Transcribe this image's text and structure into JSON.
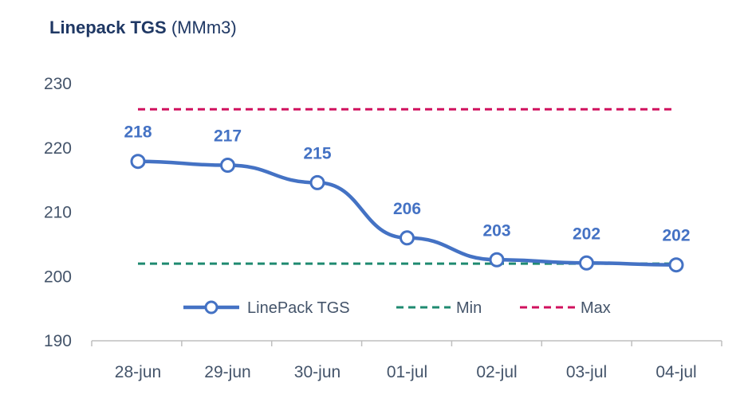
{
  "title": {
    "main": "Linepack TGS",
    "unit": "(MMm3)"
  },
  "colors": {
    "series": "#4472c4",
    "min": "#1f8a70",
    "max": "#d0115e",
    "axis_text": "#44546a",
    "title": "#1f3864"
  },
  "chart_data": {
    "type": "line",
    "title": "Linepack TGS (MMm3)",
    "xlabel": "",
    "ylabel": "",
    "categories": [
      "28-jun",
      "29-jun",
      "30-jun",
      "01-jul",
      "02-jul",
      "03-jul",
      "04-jul"
    ],
    "ylim": [
      190,
      230
    ],
    "yticks": [
      190,
      200,
      210,
      220,
      230
    ],
    "grid": false,
    "legend_position": "bottom-center",
    "series": [
      {
        "name": "LinePack TGS",
        "style": "solid-with-circle-markers",
        "values": [
          217.9,
          217.3,
          214.6,
          206.0,
          202.6,
          202.1,
          201.8
        ],
        "labels": [
          "218",
          "217",
          "215",
          "206",
          "203",
          "202",
          "202"
        ]
      },
      {
        "name": "Min",
        "style": "dashed",
        "values": [
          202,
          202,
          202,
          202,
          202,
          202,
          202
        ]
      },
      {
        "name": "Max",
        "style": "dashed",
        "values": [
          226,
          226,
          226,
          226,
          226,
          226,
          226
        ]
      }
    ]
  }
}
